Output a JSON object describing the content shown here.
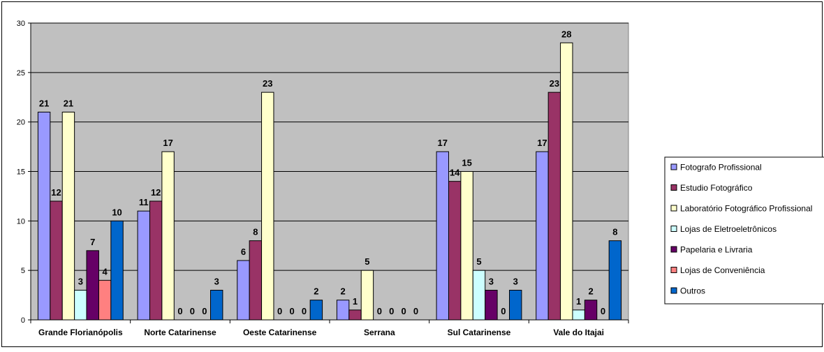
{
  "chart_data": {
    "type": "bar",
    "categories": [
      "Grande Florianópolis",
      "Norte Catarinense",
      "Oeste Catarinense",
      "Serrana",
      "Sul Catarinense",
      "Vale do Itajai"
    ],
    "series": [
      {
        "name": "Fotografo Profissional",
        "color": "#9999ff",
        "values": [
          21,
          11,
          6,
          2,
          17,
          17
        ]
      },
      {
        "name": "Estudio Fotográfico",
        "color": "#993366",
        "values": [
          12,
          12,
          8,
          1,
          14,
          23
        ]
      },
      {
        "name": "Laboratório Fotográfico Profissional",
        "color": "#ffffcc",
        "values": [
          21,
          17,
          23,
          5,
          15,
          28
        ]
      },
      {
        "name": "Lojas de Eletroeletrônicos",
        "color": "#ccffff",
        "values": [
          3,
          0,
          0,
          0,
          5,
          1
        ]
      },
      {
        "name": "Papelaria e Livraria",
        "color": "#660066",
        "values": [
          7,
          0,
          0,
          0,
          3,
          2
        ]
      },
      {
        "name": "Lojas de Conveniência",
        "color": "#ff8080",
        "values": [
          4,
          0,
          0,
          0,
          0,
          0
        ]
      },
      {
        "name": "Outros",
        "color": "#0066cc",
        "values": [
          10,
          3,
          2,
          0,
          3,
          8
        ]
      }
    ],
    "ylim": [
      0,
      30
    ],
    "yticks": [
      0,
      5,
      10,
      15,
      20,
      25,
      30
    ],
    "grid": true,
    "plot_background": "#c0c0c0",
    "legend_position": "right",
    "title": "",
    "xlabel": "",
    "ylabel": ""
  }
}
